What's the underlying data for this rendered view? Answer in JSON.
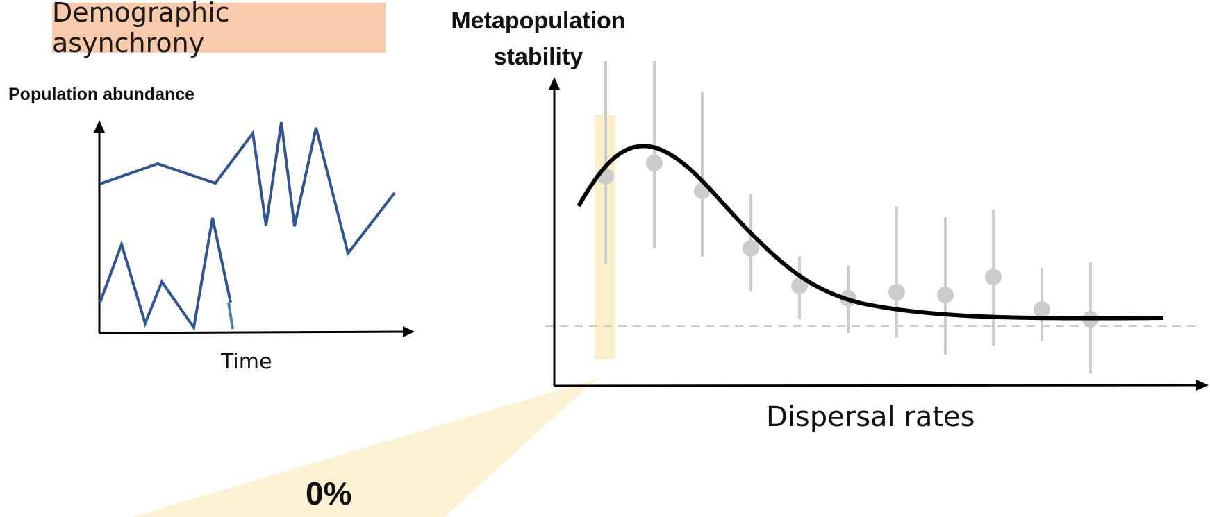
{
  "left_panel": {
    "tag": "Demographic asynchrony",
    "y_axis_label": "Population abundance",
    "x_axis_label": "Time"
  },
  "right_panel": {
    "y_axis_label": "Metapopulation stability",
    "x_axis_label": "Dispersal rates"
  },
  "callout": {
    "value": "0%"
  },
  "colors": {
    "tag_background": "#f9cbac",
    "series_line": "#2f5592",
    "highlight": "#fdeecd",
    "points": "#cfcfcf",
    "curve": "#000000"
  }
}
